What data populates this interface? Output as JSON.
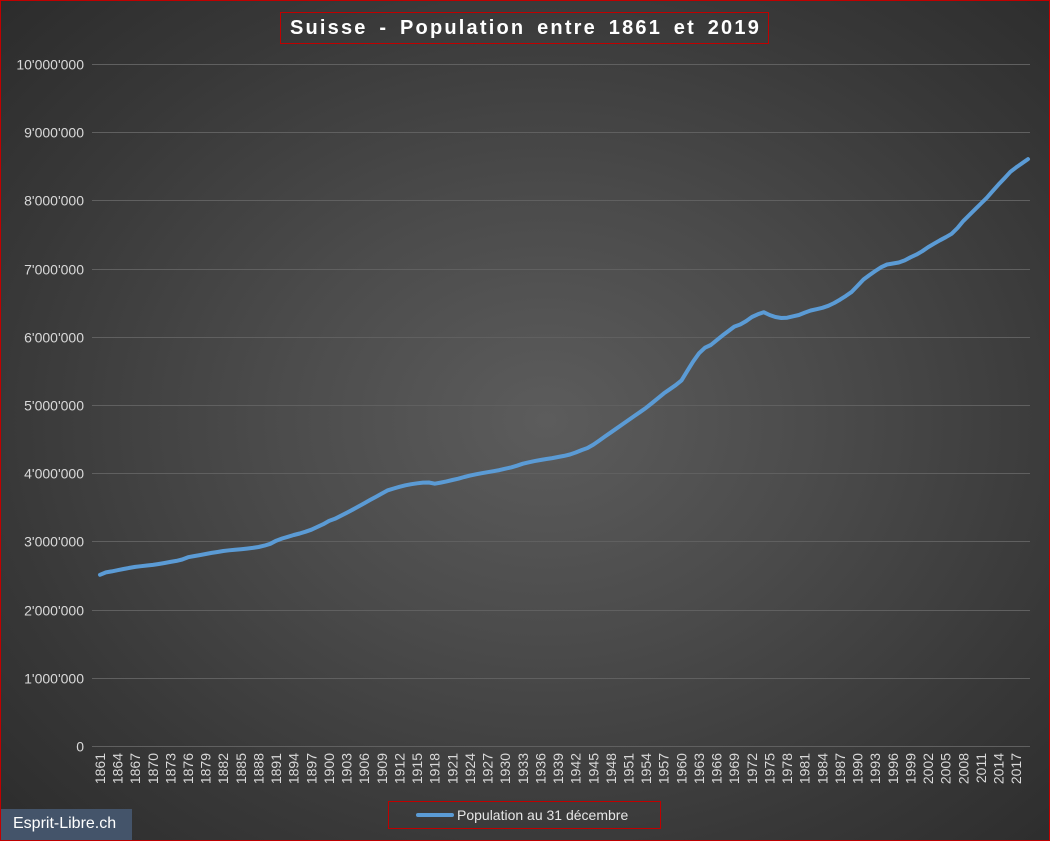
{
  "chart_data": {
    "type": "line",
    "title": "Suisse - Population entre 1861 et 2019",
    "x": [
      1861,
      1862,
      1863,
      1864,
      1865,
      1866,
      1867,
      1868,
      1869,
      1870,
      1871,
      1872,
      1873,
      1874,
      1875,
      1876,
      1877,
      1878,
      1879,
      1880,
      1881,
      1882,
      1883,
      1884,
      1885,
      1886,
      1887,
      1888,
      1889,
      1890,
      1891,
      1892,
      1893,
      1894,
      1895,
      1896,
      1897,
      1898,
      1899,
      1900,
      1901,
      1902,
      1903,
      1904,
      1905,
      1906,
      1907,
      1908,
      1909,
      1910,
      1911,
      1912,
      1913,
      1914,
      1915,
      1916,
      1917,
      1918,
      1919,
      1920,
      1921,
      1922,
      1923,
      1924,
      1925,
      1926,
      1927,
      1928,
      1929,
      1930,
      1931,
      1932,
      1933,
      1934,
      1935,
      1936,
      1937,
      1938,
      1939,
      1940,
      1941,
      1942,
      1943,
      1944,
      1945,
      1946,
      1947,
      1948,
      1949,
      1950,
      1951,
      1952,
      1953,
      1954,
      1955,
      1956,
      1957,
      1958,
      1959,
      1960,
      1961,
      1962,
      1963,
      1964,
      1965,
      1966,
      1967,
      1968,
      1969,
      1970,
      1971,
      1972,
      1973,
      1974,
      1975,
      1976,
      1977,
      1978,
      1979,
      1980,
      1981,
      1982,
      1983,
      1984,
      1985,
      1986,
      1987,
      1988,
      1989,
      1990,
      1991,
      1992,
      1993,
      1994,
      1995,
      1996,
      1997,
      1998,
      1999,
      2000,
      2001,
      2002,
      2003,
      2004,
      2005,
      2006,
      2007,
      2008,
      2009,
      2010,
      2011,
      2012,
      2013,
      2014,
      2015,
      2016,
      2017,
      2018,
      2019
    ],
    "series": [
      {
        "name": "Population au 31 décembre",
        "color": "#5b9bd5",
        "values": [
          2510000,
          2545000,
          2560000,
          2578000,
          2596000,
          2612000,
          2626000,
          2636000,
          2646000,
          2655000,
          2669000,
          2684000,
          2699000,
          2714000,
          2735000,
          2768000,
          2784000,
          2799000,
          2815000,
          2832000,
          2845000,
          2859000,
          2870000,
          2879000,
          2886000,
          2895000,
          2905000,
          2918000,
          2938000,
          2965000,
          3010000,
          3042000,
          3068000,
          3094000,
          3116000,
          3142000,
          3172000,
          3212000,
          3252000,
          3300000,
          3332000,
          3375000,
          3420000,
          3465000,
          3512000,
          3560000,
          3608000,
          3655000,
          3702000,
          3750000,
          3775000,
          3800000,
          3822000,
          3838000,
          3852000,
          3862000,
          3864000,
          3846000,
          3862000,
          3880000,
          3900000,
          3920000,
          3944000,
          3965000,
          3984000,
          4000000,
          4015000,
          4030000,
          4046000,
          4066000,
          4085000,
          4110000,
          4140000,
          4160000,
          4178000,
          4194000,
          4208000,
          4222000,
          4238000,
          4254000,
          4274000,
          4304000,
          4338000,
          4370000,
          4420000,
          4478000,
          4540000,
          4600000,
          4660000,
          4720000,
          4780000,
          4840000,
          4900000,
          4960000,
          5030000,
          5100000,
          5170000,
          5230000,
          5290000,
          5360000,
          5500000,
          5640000,
          5760000,
          5840000,
          5880000,
          5950000,
          6020000,
          6085000,
          6150000,
          6180000,
          6230000,
          6290000,
          6330000,
          6360000,
          6320000,
          6290000,
          6275000,
          6280000,
          6300000,
          6320000,
          6355000,
          6385000,
          6405000,
          6425000,
          6455000,
          6495000,
          6545000,
          6600000,
          6660000,
          6750000,
          6840000,
          6905000,
          6965000,
          7020000,
          7060000,
          7075000,
          7090000,
          7120000,
          7165000,
          7205000,
          7255000,
          7315000,
          7365000,
          7415000,
          7460000,
          7510000,
          7595000,
          7700000,
          7785000,
          7870000,
          7955000,
          8040000,
          8140000,
          8235000,
          8325000,
          8420000,
          8485000,
          8545000,
          8605000
        ]
      }
    ],
    "ylim": [
      0,
      10000000
    ],
    "y_tick_labels": [
      "0",
      "1'000'000",
      "2'000'000",
      "3'000'000",
      "4'000'000",
      "5'000'000",
      "6'000'000",
      "7'000'000",
      "8'000'000",
      "9'000'000",
      "10'000'000"
    ],
    "x_tick_labels": [
      "1861",
      "1864",
      "1867",
      "1870",
      "1873",
      "1876",
      "1879",
      "1882",
      "1885",
      "1888",
      "1891",
      "1894",
      "1897",
      "1900",
      "1903",
      "1906",
      "1909",
      "1912",
      "1915",
      "1918",
      "1921",
      "1924",
      "1927",
      "1930",
      "1933",
      "1936",
      "1939",
      "1942",
      "1945",
      "1948",
      "1951",
      "1954",
      "1957",
      "1960",
      "1963",
      "1966",
      "1969",
      "1972",
      "1975",
      "1978",
      "1981",
      "1984",
      "1987",
      "1990",
      "1993",
      "1996",
      "1999",
      "2002",
      "2005",
      "2008",
      "2011",
      "2014",
      "2017"
    ],
    "grid": true,
    "legend_position": "bottom"
  },
  "watermark": {
    "text": "Esprit-Libre.ch"
  },
  "colors": {
    "frame": "#c00000",
    "watermark_background": "#44546a"
  }
}
